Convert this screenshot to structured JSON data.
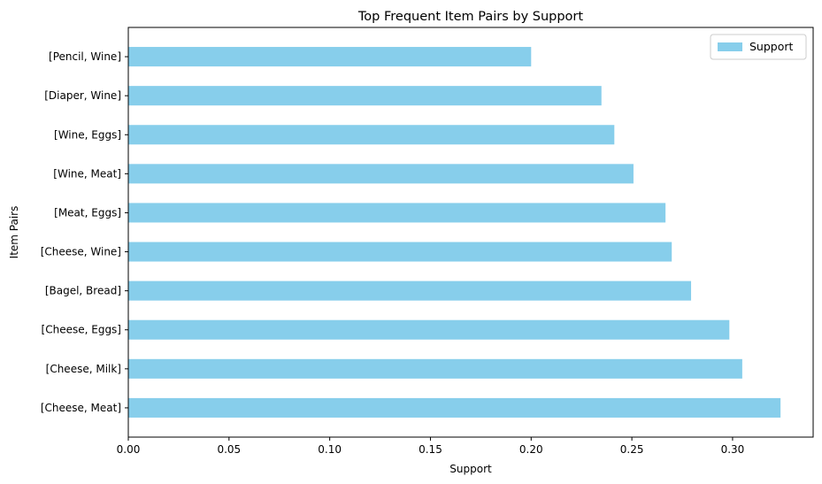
{
  "chart_data": {
    "type": "bar",
    "orientation": "horizontal",
    "title": "Top Frequent Item Pairs by Support",
    "xlabel": "Support",
    "ylabel": "Item Pairs",
    "xlim": [
      0,
      0.34
    ],
    "xticks": [
      0.0,
      0.05,
      0.1,
      0.15,
      0.2,
      0.25,
      0.3
    ],
    "xtick_labels": [
      "0.00",
      "0.05",
      "0.10",
      "0.15",
      "0.20",
      "0.25",
      "0.30"
    ],
    "grid": false,
    "legend_position": "top-right",
    "bar_color": "#87CEEB",
    "categories": [
      "[Cheese, Meat]",
      "[Cheese, Milk]",
      "[Cheese, Eggs]",
      "[Bagel, Bread]",
      "[Cheese, Wine]",
      "[Meat, Eggs]",
      "[Wine, Meat]",
      "[Wine, Eggs]",
      "[Diaper, Wine]",
      "[Pencil, Wine]"
    ],
    "series": [
      {
        "name": "Support",
        "values": [
          0.3238,
          0.3048,
          0.2984,
          0.2794,
          0.2698,
          0.2667,
          0.2508,
          0.2413,
          0.2349,
          0.2
        ]
      }
    ]
  }
}
